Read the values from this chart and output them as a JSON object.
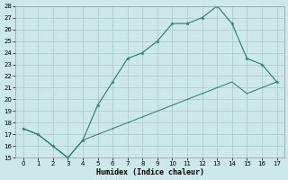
{
  "line1_x": [
    0,
    1,
    2,
    3,
    4,
    5,
    6,
    7,
    8,
    9,
    10,
    11,
    12,
    13,
    14,
    15,
    16,
    17
  ],
  "line1_y": [
    17.5,
    17.0,
    16.0,
    15.0,
    16.5,
    19.5,
    21.5,
    23.5,
    24.0,
    25.0,
    26.5,
    26.5,
    27.0,
    28.0,
    26.5,
    23.5,
    23.0,
    21.5
  ],
  "line2_x": [
    0,
    1,
    2,
    3,
    4,
    5,
    6,
    7,
    8,
    9,
    10,
    11,
    12,
    13,
    14,
    15,
    16,
    17
  ],
  "line2_y": [
    17.5,
    17.0,
    16.0,
    15.0,
    16.5,
    17.0,
    17.5,
    18.0,
    18.5,
    19.0,
    19.5,
    20.0,
    20.5,
    21.0,
    21.5,
    20.5,
    21.0,
    21.5
  ],
  "line_color": "#2a7a6e",
  "bg_color": "#cce8e8",
  "grid_color": "#aecece",
  "xlabel": "Humidex (Indice chaleur)",
  "ylim": [
    15,
    28
  ],
  "xlim": [
    -0.5,
    17.5
  ],
  "yticks": [
    15,
    16,
    17,
    18,
    19,
    20,
    21,
    22,
    23,
    24,
    25,
    26,
    27,
    28
  ],
  "xticks": [
    0,
    1,
    2,
    3,
    4,
    5,
    6,
    7,
    8,
    9,
    10,
    11,
    12,
    13,
    14,
    15,
    16,
    17
  ]
}
